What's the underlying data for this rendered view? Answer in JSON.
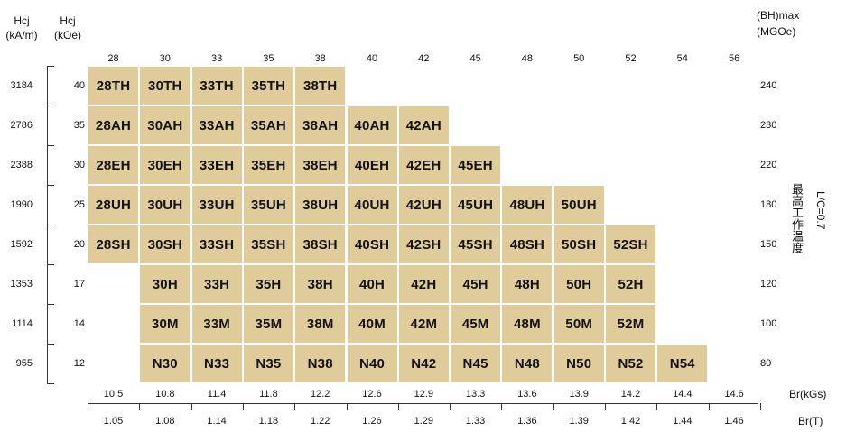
{
  "axis_titles": {
    "hcj_si_line1": "Hcj",
    "hcj_si_line2": "(kA/m)",
    "hcj_cgs_line1": "Hcj",
    "hcj_cgs_line2": "(kOe)",
    "bh_line1": "(BH)max",
    "bh_line2": "(MGOe)",
    "br_kgs": "Br(kGs)",
    "br_t": "Br(T)",
    "max_temp": "最高工作温度",
    "lc_ratio": "L/C=0.7"
  },
  "bh_ticks": [
    "28",
    "30",
    "33",
    "35",
    "38",
    "40",
    "42",
    "45",
    "48",
    "50",
    "52",
    "54",
    "56"
  ],
  "br_kgs_ticks": [
    "10.5",
    "10.8",
    "11.4",
    "11.8",
    "12.2",
    "12.6",
    "12.9",
    "13.3",
    "13.6",
    "13.9",
    "14.2",
    "14.4",
    "14.6"
  ],
  "br_t_ticks": [
    "1.05",
    "1.08",
    "1.14",
    "1.18",
    "1.22",
    "1.26",
    "1.29",
    "1.33",
    "1.36",
    "1.39",
    "1.42",
    "1.44",
    "1.46"
  ],
  "hcj_kam_ticks": [
    "3184",
    "2786",
    "2388",
    "1990",
    "1592",
    "1353",
    "1114",
    "955"
  ],
  "hcj_koe_ticks": [
    "40",
    "35",
    "30",
    "25",
    "20",
    "17",
    "14",
    "12"
  ],
  "temp_ticks": [
    "240",
    "230",
    "220",
    "180",
    "150",
    "120",
    "100",
    "80"
  ],
  "chart_data": {
    "type": "table",
    "rows": [
      {
        "hcj_kam": "3184",
        "hcj_koe": "40",
        "temp": "240",
        "start_col": 0,
        "grades": [
          "28TH",
          "30TH",
          "33TH",
          "35TH",
          "38TH"
        ]
      },
      {
        "hcj_kam": "2786",
        "hcj_koe": "35",
        "temp": "230",
        "start_col": 0,
        "grades": [
          "28AH",
          "30AH",
          "33AH",
          "35AH",
          "38AH",
          "40AH",
          "42AH"
        ]
      },
      {
        "hcj_kam": "2388",
        "hcj_koe": "30",
        "temp": "220",
        "start_col": 0,
        "grades": [
          "28EH",
          "30EH",
          "33EH",
          "35EH",
          "38EH",
          "40EH",
          "42EH",
          "45EH"
        ]
      },
      {
        "hcj_kam": "1990",
        "hcj_koe": "25",
        "temp": "180",
        "start_col": 0,
        "grades": [
          "28UH",
          "30UH",
          "33UH",
          "35UH",
          "38UH",
          "40UH",
          "42UH",
          "45UH",
          "48UH",
          "50UH"
        ]
      },
      {
        "hcj_kam": "1592",
        "hcj_koe": "20",
        "temp": "150",
        "start_col": 0,
        "grades": [
          "28SH",
          "30SH",
          "33SH",
          "35SH",
          "38SH",
          "40SH",
          "42SH",
          "45SH",
          "48SH",
          "50SH",
          "52SH"
        ]
      },
      {
        "hcj_kam": "1353",
        "hcj_koe": "17",
        "temp": "120",
        "start_col": 1,
        "grades": [
          "30H",
          "33H",
          "35H",
          "38H",
          "40H",
          "42H",
          "45H",
          "48H",
          "50H",
          "52H"
        ]
      },
      {
        "hcj_kam": "1114",
        "hcj_koe": "14",
        "temp": "100",
        "start_col": 1,
        "grades": [
          "30M",
          "33M",
          "35M",
          "38M",
          "40M",
          "42M",
          "45M",
          "48M",
          "50M",
          "52M"
        ]
      },
      {
        "hcj_kam": "955",
        "hcj_koe": "12",
        "temp": "80",
        "start_col": 1,
        "grades": [
          "N30",
          "N33",
          "N35",
          "N38",
          "N40",
          "N42",
          "N45",
          "N48",
          "N50",
          "N52",
          "N54"
        ]
      }
    ]
  }
}
